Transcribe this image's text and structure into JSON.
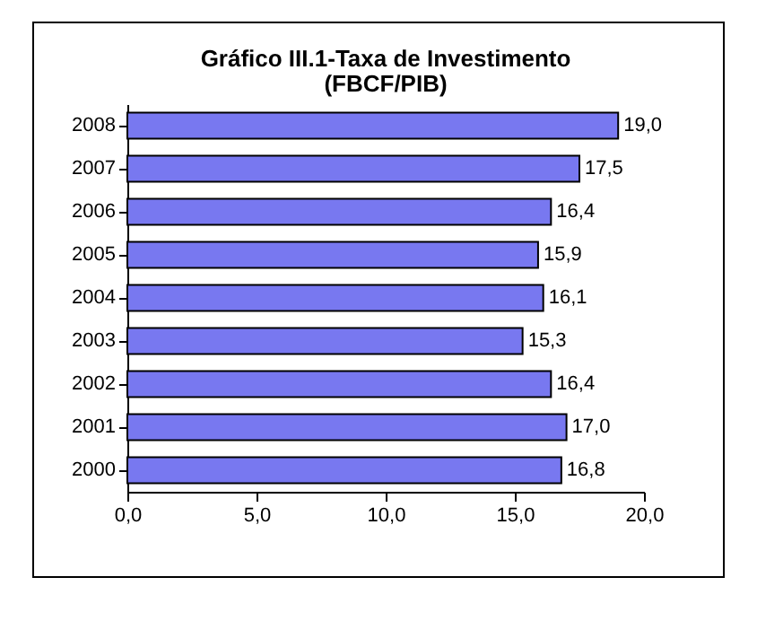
{
  "chart_data": {
    "type": "bar",
    "orientation": "horizontal",
    "title": "Gráfico III.1-Taxa de Investimento",
    "subtitle": "(FBCF/PIB)",
    "categories": [
      "2008",
      "2007",
      "2006",
      "2005",
      "2004",
      "2003",
      "2002",
      "2001",
      "2000"
    ],
    "values": [
      19.0,
      17.5,
      16.4,
      15.9,
      16.1,
      15.3,
      16.4,
      17.0,
      16.8
    ],
    "value_labels": [
      "19,0",
      "17,5",
      "16,4",
      "15,9",
      "16,1",
      "15,3",
      "16,4",
      "17,0",
      "16,8"
    ],
    "color": "#7878f0",
    "xlim": [
      0,
      20
    ],
    "xticks": [
      {
        "value": 0,
        "label": "0,0"
      },
      {
        "value": 5,
        "label": "5,0"
      },
      {
        "value": 10,
        "label": "10,0"
      },
      {
        "value": 15,
        "label": "15,0"
      },
      {
        "value": 20,
        "label": "20,0"
      }
    ],
    "grid": false
  }
}
